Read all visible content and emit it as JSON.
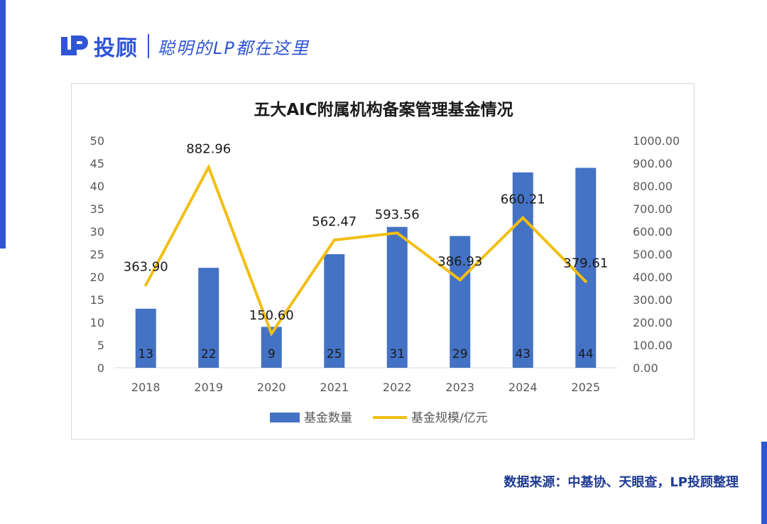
{
  "brand": {
    "name": "投顾",
    "slogan": "聪明的LP都在这里",
    "color": "#2f55d4"
  },
  "chart_data": {
    "type": "bar",
    "title": "五大AIC附属机构备案管理基金情况",
    "categories": [
      "2018",
      "2019",
      "2020",
      "2021",
      "2022",
      "2023",
      "2024",
      "2025"
    ],
    "series": [
      {
        "name": "基金数量",
        "kind": "bar",
        "axis": "left",
        "color": "#4472c4",
        "values": [
          13,
          22,
          9,
          25,
          31,
          29,
          43,
          44
        ],
        "labels": [
          "13",
          "22",
          "9",
          "25",
          "31",
          "29",
          "43",
          "44"
        ]
      },
      {
        "name": "基金规模/亿元",
        "kind": "line",
        "axis": "right",
        "color": "#f2be12",
        "values": [
          363.9,
          882.96,
          150.6,
          562.47,
          593.56,
          386.93,
          660.21,
          379.61
        ],
        "labels": [
          "363.90",
          "882.96",
          "150.60",
          "562.47",
          "593.56",
          "386.93",
          "660.21",
          "379.61"
        ]
      }
    ],
    "y_left": {
      "min": 0,
      "max": 50,
      "ticks": [
        "0",
        "5",
        "10",
        "15",
        "20",
        "25",
        "30",
        "35",
        "40",
        "45",
        "50"
      ]
    },
    "y_right": {
      "min": 0,
      "max": 1000,
      "ticks": [
        "0.00",
        "100.00",
        "200.00",
        "300.00",
        "400.00",
        "500.00",
        "600.00",
        "700.00",
        "800.00",
        "900.00",
        "1000.00"
      ]
    },
    "legend_position": "bottom",
    "grid": false
  },
  "source": "数据来源：中基协、天眼查，LP投顾整理"
}
